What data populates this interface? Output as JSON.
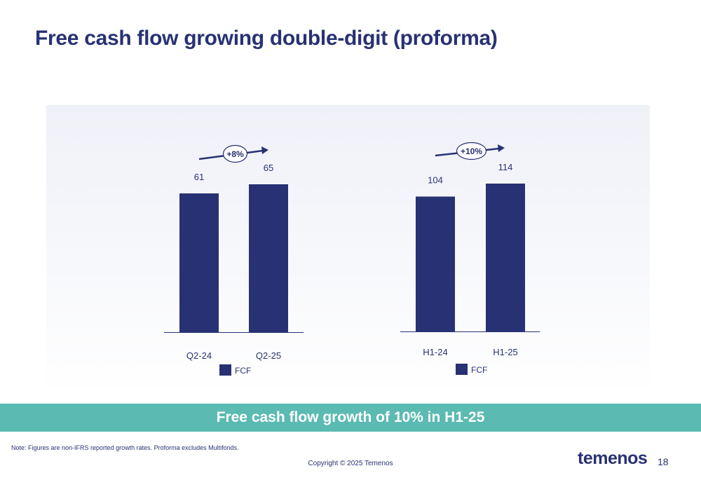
{
  "title": "Free cash flow growing double-digit (proforma)",
  "chart_data": [
    {
      "type": "bar",
      "categories": [
        "Q2-24",
        "Q2-25"
      ],
      "series": [
        {
          "name": "FCF",
          "values": [
            61,
            65
          ]
        }
      ],
      "growth_label": "+8%",
      "legend": [
        "FCF"
      ],
      "color": "#283173"
    },
    {
      "type": "bar",
      "categories": [
        "H1-24",
        "H1-25"
      ],
      "series": [
        {
          "name": "FCF",
          "values": [
            104,
            114
          ]
        }
      ],
      "growth_label": "+10%",
      "legend": [
        "FCF"
      ],
      "color": "#283173"
    }
  ],
  "banner": {
    "text": "Free cash flow growth of 10% in H1-25",
    "color": "#5bbab2"
  },
  "footer": {
    "note": "Note: Figures are non-IFRS reported growth rates. Proforma excludes Multifonds.",
    "copyright": "Copyright © 2025 Temenos",
    "logo_text": "temenos",
    "page_number": "18"
  }
}
